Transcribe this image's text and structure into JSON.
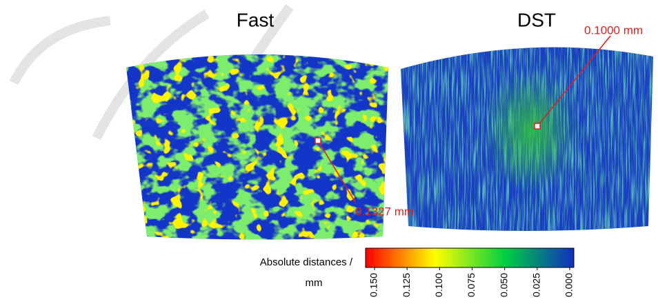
{
  "panels": [
    {
      "title": "Fast",
      "annotation": "0.1327 mm"
    },
    {
      "title": "DST",
      "annotation": "0.1000 mm"
    }
  ],
  "colorbar": {
    "label_lines": [
      "Absolute distances /",
      "mm"
    ],
    "clim": [
      0.15,
      0
    ],
    "ticks": [
      {
        "value": 0.15,
        "label": "0.150"
      },
      {
        "value": 0.125,
        "label": "0.125"
      },
      {
        "value": 0.1,
        "label": "0.100"
      },
      {
        "value": 0.075,
        "label": "0.075"
      },
      {
        "value": 0.05,
        "label": "0.050"
      },
      {
        "value": 0.025,
        "label": "0.025"
      },
      {
        "value": 0,
        "label": "0.000"
      }
    ],
    "colors": [
      "#ff0000",
      "#ffff00",
      "#00d040",
      "#1030c0"
    ]
  }
}
